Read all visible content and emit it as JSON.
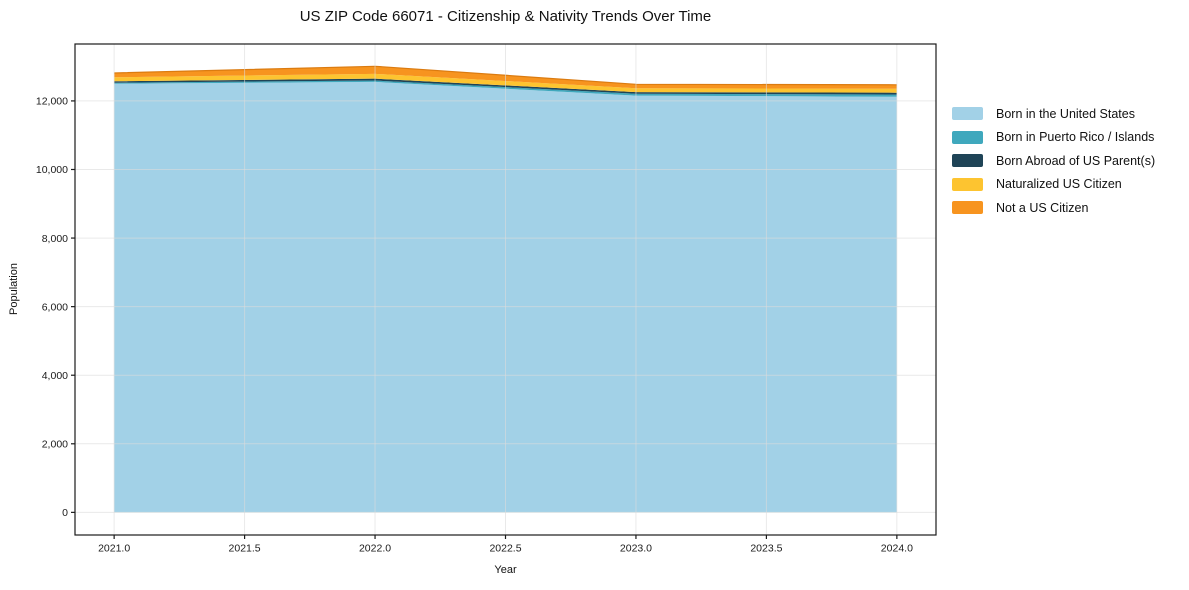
{
  "title": "US ZIP Code 66071 - Citizenship & Nativity Trends Over Time",
  "chart_data": {
    "type": "area",
    "stacked": true,
    "title": "US ZIP Code 66071 - Citizenship & Nativity Trends Over Time",
    "xlabel": "Year",
    "ylabel": "Population",
    "x": [
      2021,
      2022,
      2023,
      2024
    ],
    "series": [
      {
        "name": "Born in the United States",
        "color": "#a2d1e7",
        "values": [
          12500,
          12555,
          12155,
          12120
        ]
      },
      {
        "name": "Born in Puerto Rico / Islands",
        "color": "#3fa8bd",
        "values": [
          30,
          40,
          55,
          65
        ]
      },
      {
        "name": "Born Abroad of US Parent(s)",
        "color": "#1f4457",
        "values": [
          45,
          55,
          45,
          55
        ]
      },
      {
        "name": "Naturalized US Citizen",
        "color": "#fdc430",
        "values": [
          115,
          140,
          115,
          115
        ]
      },
      {
        "name": "Not a US Citizen",
        "color": "#f7941f",
        "values": [
          125,
          220,
          115,
          115
        ]
      }
    ],
    "totals": [
      12815,
      13010,
      12485,
      12470
    ],
    "x_ticks": [
      2021.0,
      2021.5,
      2022.0,
      2022.5,
      2023.0,
      2023.5,
      2024.0
    ],
    "x_tick_labels": [
      "2021.0",
      "2021.5",
      "2022.0",
      "2022.5",
      "2023.0",
      "2023.5",
      "2024.0"
    ],
    "y_ticks": [
      0,
      2000,
      4000,
      6000,
      8000,
      10000,
      12000
    ],
    "y_tick_labels": [
      "0",
      "2,000",
      "4,000",
      "6,000",
      "8,000",
      "10,000",
      "12,000"
    ],
    "xlim": [
      2020.85,
      2024.15
    ],
    "ylim": [
      -660,
      13660
    ],
    "grid": true,
    "legend_position": "right",
    "colors": {
      "grid": "#dcdcdc",
      "spine": "#1a1a1a",
      "tick_label": "#1a1a1a",
      "top_edge_stroke": "#db7b10",
      "background": "#ffffff"
    }
  }
}
